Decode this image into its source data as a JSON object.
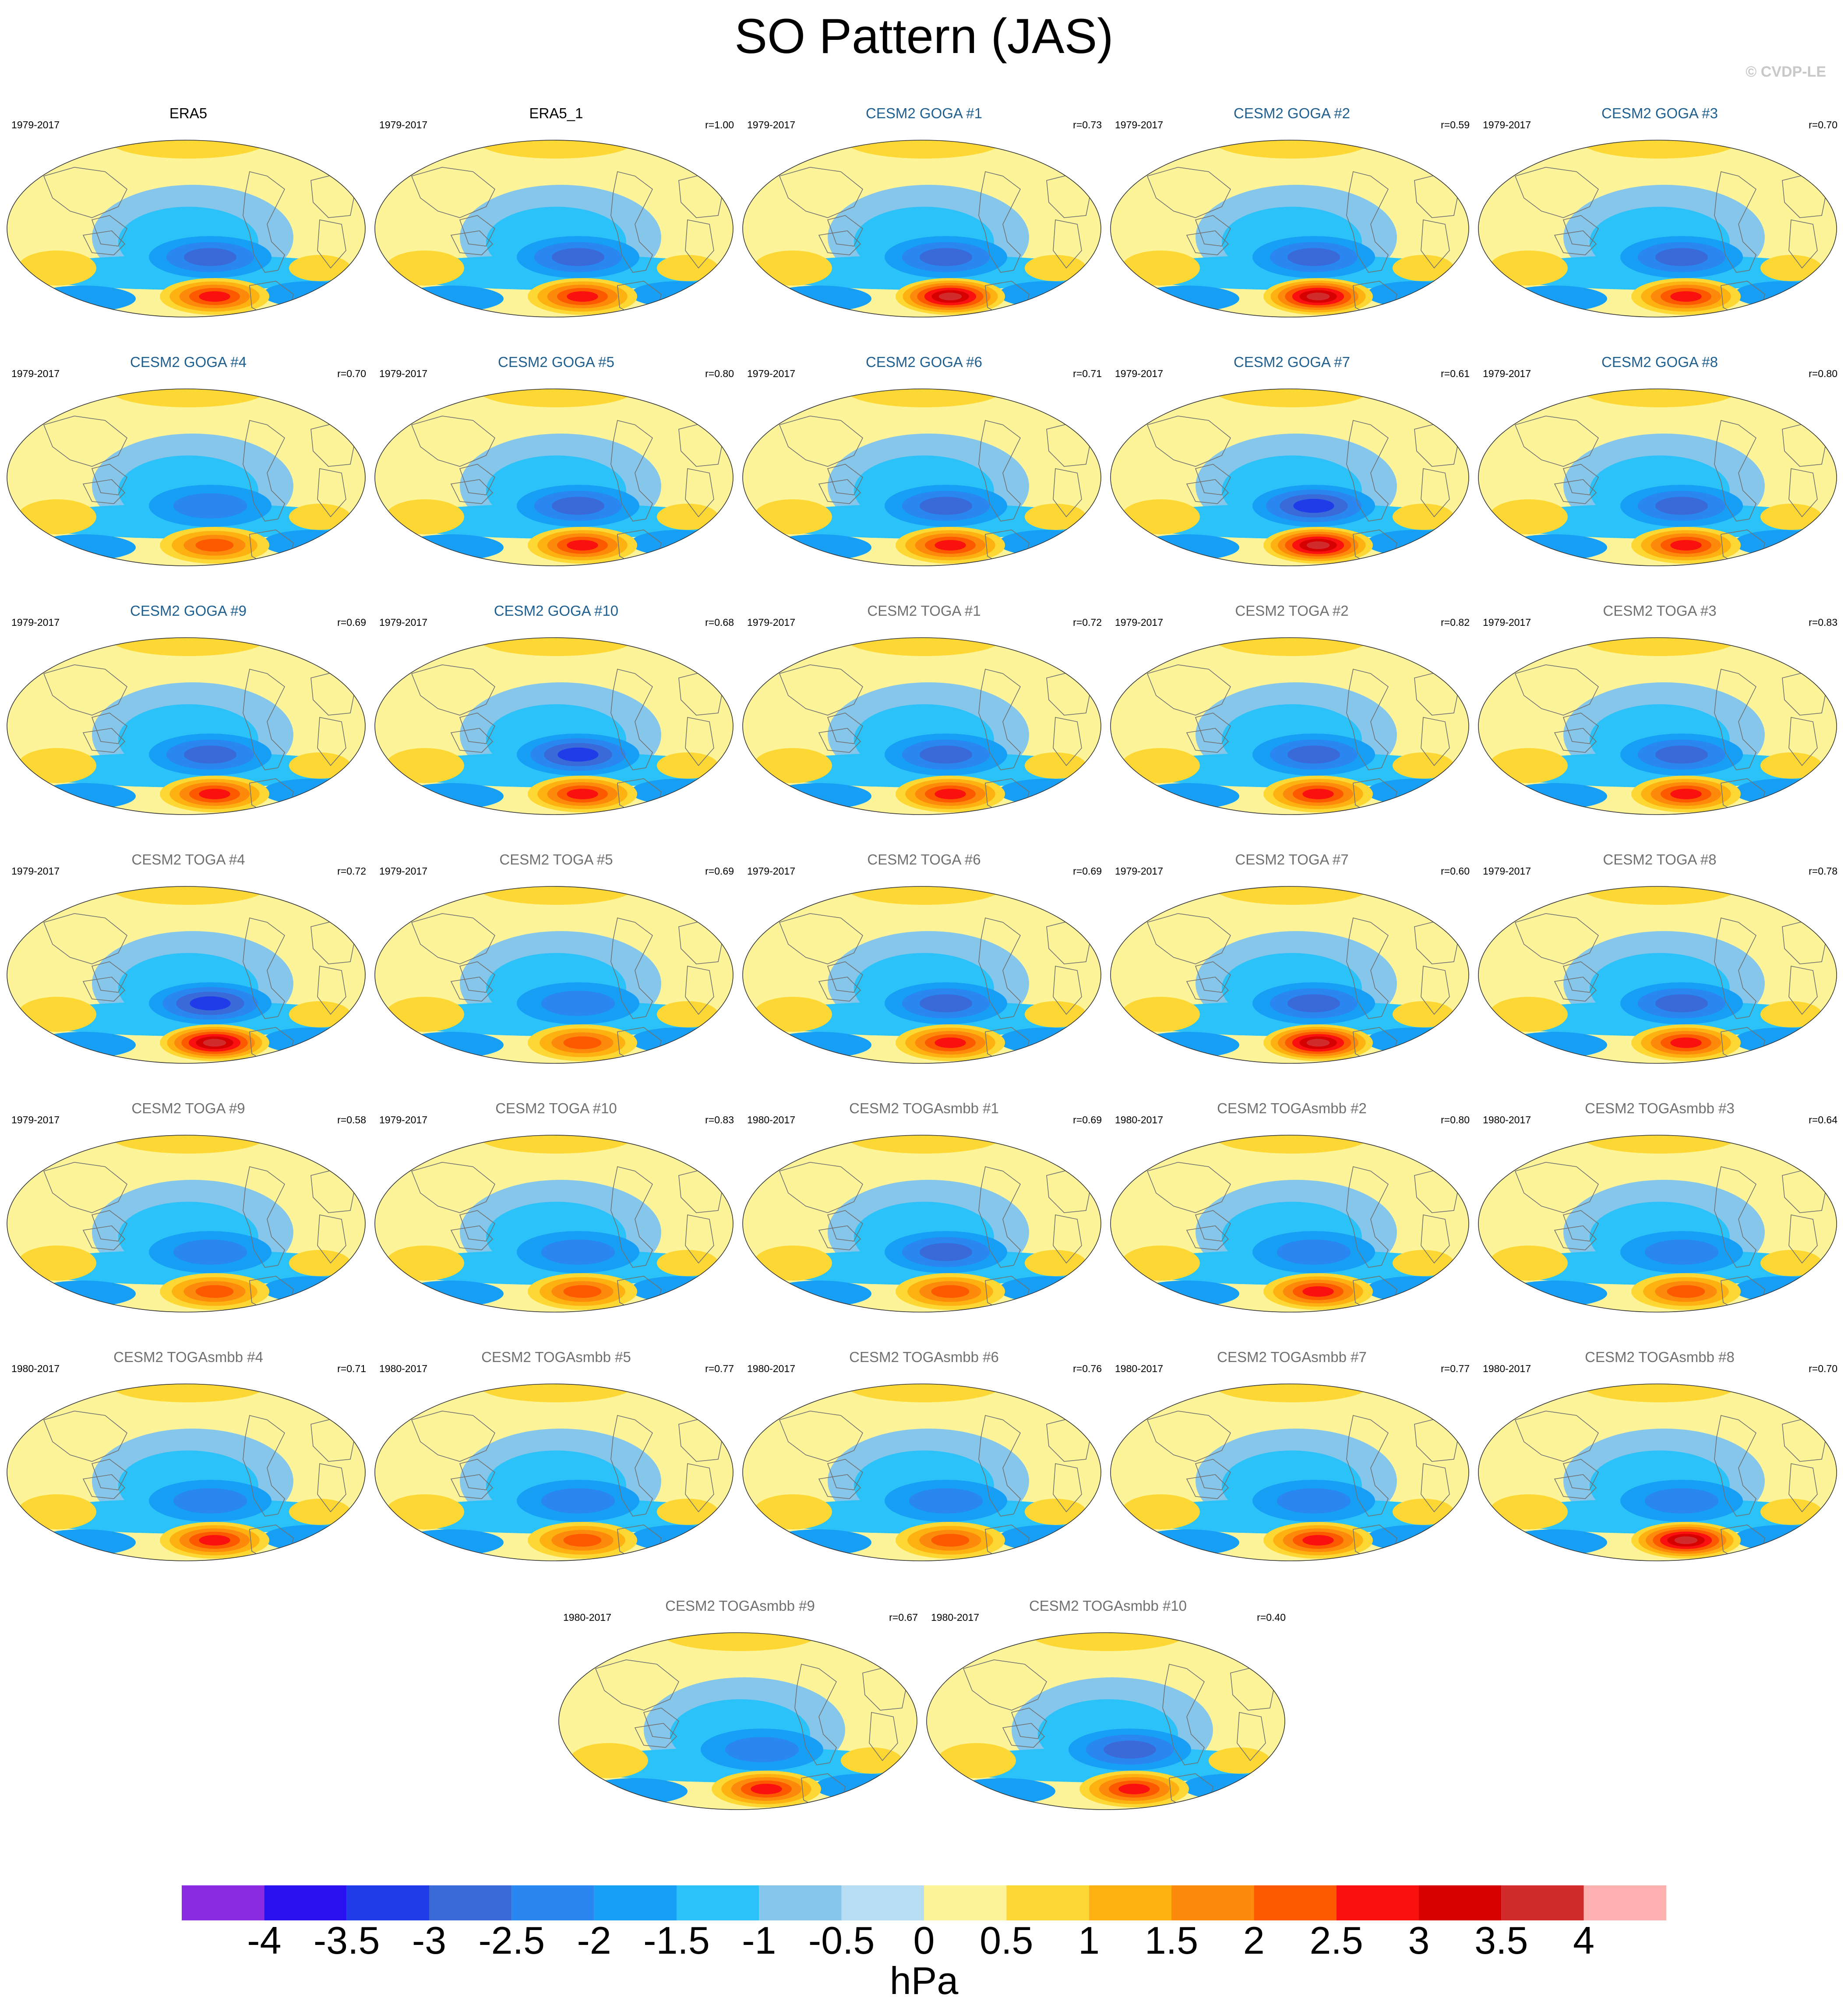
{
  "figure": {
    "title": "SO Pattern (JAS)",
    "watermark": "© CVDP-LE"
  },
  "colors": {
    "obs_title": "#000000",
    "goga_title": "#1f5f8f",
    "toga_title": "#707070",
    "land_outline": "#707070",
    "map_border": "#333333"
  },
  "chart_data": {
    "type": "heatmap",
    "projection": "Robinson-like global ellipse",
    "panels": [
      {
        "title": "ERA5",
        "period": "1979-2017",
        "r": "",
        "group": "obs",
        "high": 3.0,
        "low": -2.5
      },
      {
        "title": "ERA5_1",
        "period": "1979-2017",
        "r": "r=1.00",
        "group": "obs",
        "high": 3.0,
        "low": -2.5
      },
      {
        "title": "CESM2 GOGA #1",
        "period": "1979-2017",
        "r": "r=0.73",
        "group": "goga",
        "high": 4.0,
        "low": -2.5
      },
      {
        "title": "CESM2 GOGA #2",
        "period": "1979-2017",
        "r": "r=0.59",
        "group": "goga",
        "high": 4.0,
        "low": -2.5
      },
      {
        "title": "CESM2 GOGA #3",
        "period": "1979-2017",
        "r": "r=0.70",
        "group": "goga",
        "high": 3.0,
        "low": -2.5
      },
      {
        "title": "CESM2 GOGA #4",
        "period": "1979-2017",
        "r": "r=0.70",
        "group": "goga",
        "high": 2.5,
        "low": -2.0
      },
      {
        "title": "CESM2 GOGA #5",
        "period": "1979-2017",
        "r": "r=0.80",
        "group": "goga",
        "high": 3.0,
        "low": -2.5
      },
      {
        "title": "CESM2 GOGA #6",
        "period": "1979-2017",
        "r": "r=0.71",
        "group": "goga",
        "high": 3.0,
        "low": -2.5
      },
      {
        "title": "CESM2 GOGA #7",
        "period": "1979-2017",
        "r": "r=0.61",
        "group": "goga",
        "high": 4.0,
        "low": -3.0
      },
      {
        "title": "CESM2 GOGA #8",
        "period": "1979-2017",
        "r": "r=0.80",
        "group": "goga",
        "high": 3.0,
        "low": -2.5
      },
      {
        "title": "CESM2 GOGA #9",
        "period": "1979-2017",
        "r": "r=0.69",
        "group": "goga",
        "high": 3.0,
        "low": -2.5
      },
      {
        "title": "CESM2 GOGA #10",
        "period": "1979-2017",
        "r": "r=0.68",
        "group": "goga",
        "high": 3.0,
        "low": -3.0
      },
      {
        "title": "CESM2 TOGA #1",
        "period": "1979-2017",
        "r": "r=0.72",
        "group": "toga",
        "high": 3.0,
        "low": -2.5
      },
      {
        "title": "CESM2 TOGA #2",
        "period": "1979-2017",
        "r": "r=0.82",
        "group": "toga",
        "high": 3.0,
        "low": -2.5
      },
      {
        "title": "CESM2 TOGA #3",
        "period": "1979-2017",
        "r": "r=0.83",
        "group": "toga",
        "high": 3.0,
        "low": -2.5
      },
      {
        "title": "CESM2 TOGA #4",
        "period": "1979-2017",
        "r": "r=0.72",
        "group": "toga",
        "high": 4.0,
        "low": -3.0
      },
      {
        "title": "CESM2 TOGA #5",
        "period": "1979-2017",
        "r": "r=0.69",
        "group": "toga",
        "high": 2.5,
        "low": -2.0
      },
      {
        "title": "CESM2 TOGA #6",
        "period": "1979-2017",
        "r": "r=0.69",
        "group": "toga",
        "high": 3.0,
        "low": -2.5
      },
      {
        "title": "CESM2 TOGA #7",
        "period": "1979-2017",
        "r": "r=0.60",
        "group": "toga",
        "high": 4.0,
        "low": -2.5
      },
      {
        "title": "CESM2 TOGA #8",
        "period": "1979-2017",
        "r": "r=0.78",
        "group": "toga",
        "high": 3.0,
        "low": -2.5
      },
      {
        "title": "CESM2 TOGA #9",
        "period": "1979-2017",
        "r": "r=0.58",
        "group": "toga",
        "high": 2.5,
        "low": -2.0
      },
      {
        "title": "CESM2 TOGA #10",
        "period": "1979-2017",
        "r": "r=0.83",
        "group": "toga",
        "high": 2.5,
        "low": -2.0
      },
      {
        "title": "CESM2 TOGAsmbb #1",
        "period": "1980-2017",
        "r": "r=0.69",
        "group": "toga",
        "high": 2.5,
        "low": -2.5
      },
      {
        "title": "CESM2 TOGAsmbb #2",
        "period": "1980-2017",
        "r": "r=0.80",
        "group": "toga",
        "high": 3.0,
        "low": -2.0
      },
      {
        "title": "CESM2 TOGAsmbb #3",
        "period": "1980-2017",
        "r": "r=0.64",
        "group": "toga",
        "high": 2.5,
        "low": -2.0
      },
      {
        "title": "CESM2 TOGAsmbb #4",
        "period": "1980-2017",
        "r": "r=0.71",
        "group": "toga",
        "high": 3.0,
        "low": -2.0
      },
      {
        "title": "CESM2 TOGAsmbb #5",
        "period": "1980-2017",
        "r": "r=0.77",
        "group": "toga",
        "high": 2.5,
        "low": -2.0
      },
      {
        "title": "CESM2 TOGAsmbb #6",
        "period": "1980-2017",
        "r": "r=0.76",
        "group": "toga",
        "high": 2.5,
        "low": -2.0
      },
      {
        "title": "CESM2 TOGAsmbb #7",
        "period": "1980-2017",
        "r": "r=0.77",
        "group": "toga",
        "high": 3.0,
        "low": -2.0
      },
      {
        "title": "CESM2 TOGAsmbb #8",
        "period": "1980-2017",
        "r": "r=0.70",
        "group": "toga",
        "high": 4.0,
        "low": -2.0
      },
      {
        "title": "CESM2 TOGAsmbb #9",
        "period": "1980-2017",
        "r": "r=0.67",
        "group": "toga",
        "high": 3.0,
        "low": -2.0
      },
      {
        "title": "CESM2 TOGAsmbb #10",
        "period": "1980-2017",
        "r": "r=0.40",
        "group": "toga",
        "high": 3.0,
        "low": -2.5
      }
    ],
    "colorbar": {
      "units": "hPa",
      "labels": [
        "-4",
        "-3.5",
        "-3",
        "-2.5",
        "-2",
        "-1.5",
        "-1",
        "-0.5",
        "0",
        "0.5",
        "1",
        "1.5",
        "2",
        "2.5",
        "3",
        "3.5",
        "4"
      ],
      "bounds": [
        -4,
        -3.5,
        -3,
        -2.5,
        -2,
        -1.5,
        -1,
        -0.5,
        0,
        0.5,
        1,
        1.5,
        2,
        2.5,
        3,
        3.5,
        4
      ],
      "colors": [
        "#8a2be2",
        "#2a12f0",
        "#1f3ce8",
        "#3a6ad8",
        "#2a86f0",
        "#179ff5",
        "#2ac2f8",
        "#86c6ea",
        "#b6ddf1",
        "#fdf49a",
        "#fdd835",
        "#fdb212",
        "#fd8a0a",
        "#fd5a00",
        "#fb1010",
        "#d60000",
        "#d22b2b",
        "#fdb0b0"
      ]
    }
  }
}
